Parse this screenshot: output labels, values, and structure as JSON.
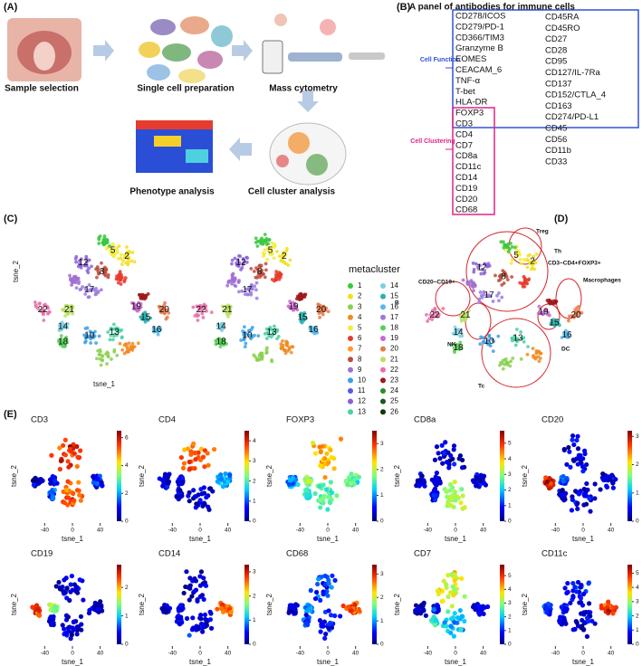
{
  "panels": {
    "a": "(A)",
    "b": "(B)",
    "c": "(C)",
    "d": "(D)",
    "e": "(E)"
  },
  "panel_a": {
    "steps": [
      "Sample selection",
      "Single cell preparation",
      "Mass cytometry",
      "Cell cluster analysis",
      "Phenotype analysis"
    ]
  },
  "panel_b": {
    "title": "A panel of antibodies for immune cells",
    "cell_function_label": "Cell Function",
    "cell_clustering_label": "Cell Clustering",
    "markers_left": [
      "CD278/ICOS",
      "CD279/PD-1",
      "CD366/TIM3",
      "Granzyme B",
      "EOMES",
      "CEACAM_6",
      "TNF-α",
      "T-bet",
      "HLA-DR",
      "FOXP3",
      "CD3",
      "CD4",
      "CD7",
      "CD8a",
      "CD11c",
      "CD14",
      "CD19",
      "CD20",
      "CD68"
    ],
    "markers_right": [
      "CD45RA",
      "CD45RO",
      "CD27",
      "CD28",
      "CD95",
      "CD127/IL-7Ra",
      "CD137",
      "CD152/CTLA_4",
      "CD163",
      "CD274/PD-L1",
      "CD45",
      "CD56",
      "CD11b",
      "CD33"
    ]
  },
  "panel_c": {
    "x_label": "tsne_1",
    "y_label": "tsne_2",
    "cluster_labels": [
      "5",
      "2",
      "12",
      "8",
      "17",
      "22",
      "21",
      "14",
      "18",
      "19",
      "15",
      "20",
      "16",
      "10",
      "13"
    ],
    "legend_title": "metacluster",
    "legend_labels": [
      "1",
      "2",
      "3",
      "4",
      "5",
      "6",
      "7",
      "8",
      "9",
      "10",
      "11",
      "12",
      "13",
      "14",
      "15",
      "16",
      "17",
      "18",
      "19",
      "20",
      "21",
      "22",
      "23",
      "24",
      "25",
      "26"
    ],
    "legend_colors": [
      "#38c83c",
      "#f0e020",
      "#8bd050",
      "#f08a20",
      "#f4ec3a",
      "#e83a2a",
      "#ff9a2a",
      "#c04a3a",
      "#a070d0",
      "#3aa0e8",
      "#5a5ae0",
      "#8a60d8",
      "#4ad0a0",
      "#7ad0e0",
      "#2ab0b0",
      "#58b8e8",
      "#9a7ae0",
      "#58d058",
      "#c86ad0",
      "#e87a4a",
      "#b8e060",
      "#e870a8",
      "#a01818",
      "#2a8a2a",
      "#1a5a1a",
      "#0a3a0a"
    ]
  },
  "panel_d": {
    "annotations": [
      "Treg",
      "Th",
      "CD3−CD4+FOXP3+",
      "Macrophages",
      "CD20−CD19+",
      "B",
      "DC",
      "NK",
      "Tc"
    ],
    "cluster_labels": [
      "5",
      "2",
      "12",
      "8",
      "17",
      "22",
      "21",
      "14",
      "18",
      "19",
      "15",
      "20",
      "16",
      "10",
      "13"
    ]
  },
  "panel_e": {
    "x_label": "tsne_1",
    "y_label": "tsne_2",
    "xlim": [
      -60,
      60
    ],
    "xticks": [
      -40,
      0,
      40
    ],
    "plots": [
      {
        "title": "CD3",
        "cbar_lim": [
          0,
          6.5
        ],
        "cbar_ticks": [
          0,
          2,
          4,
          6
        ]
      },
      {
        "title": "CD4",
        "cbar_lim": [
          0,
          4.5
        ],
        "cbar_ticks": [
          0,
          1,
          2,
          3,
          4
        ]
      },
      {
        "title": "FOXP3",
        "cbar_lim": [
          0,
          3.5
        ],
        "cbar_ticks": [
          0,
          1,
          2,
          3
        ]
      },
      {
        "title": "CD8a",
        "cbar_lim": [
          0,
          5.8
        ],
        "cbar_ticks": [
          0,
          1,
          2,
          3,
          4,
          5
        ]
      },
      {
        "title": "CD20",
        "cbar_lim": [
          0,
          3.2
        ],
        "cbar_ticks": [
          0,
          1,
          2,
          3
        ]
      },
      {
        "title": "CD19",
        "cbar_lim": [
          0,
          2.8
        ],
        "cbar_ticks": [
          0,
          1,
          2
        ]
      },
      {
        "title": "CD14",
        "cbar_lim": [
          0,
          3.3
        ],
        "cbar_ticks": [
          0,
          1,
          2,
          3
        ]
      },
      {
        "title": "CD68",
        "cbar_lim": [
          0,
          3.4
        ],
        "cbar_ticks": [
          0,
          1,
          2,
          3
        ]
      },
      {
        "title": "CD7",
        "cbar_lim": [
          0,
          5.8
        ],
        "cbar_ticks": [
          0,
          1,
          2,
          3,
          4,
          5
        ]
      },
      {
        "title": "CD11c",
        "cbar_lim": [
          0,
          5.6
        ],
        "cbar_ticks": [
          0,
          1,
          2,
          3,
          4,
          5
        ]
      }
    ]
  }
}
